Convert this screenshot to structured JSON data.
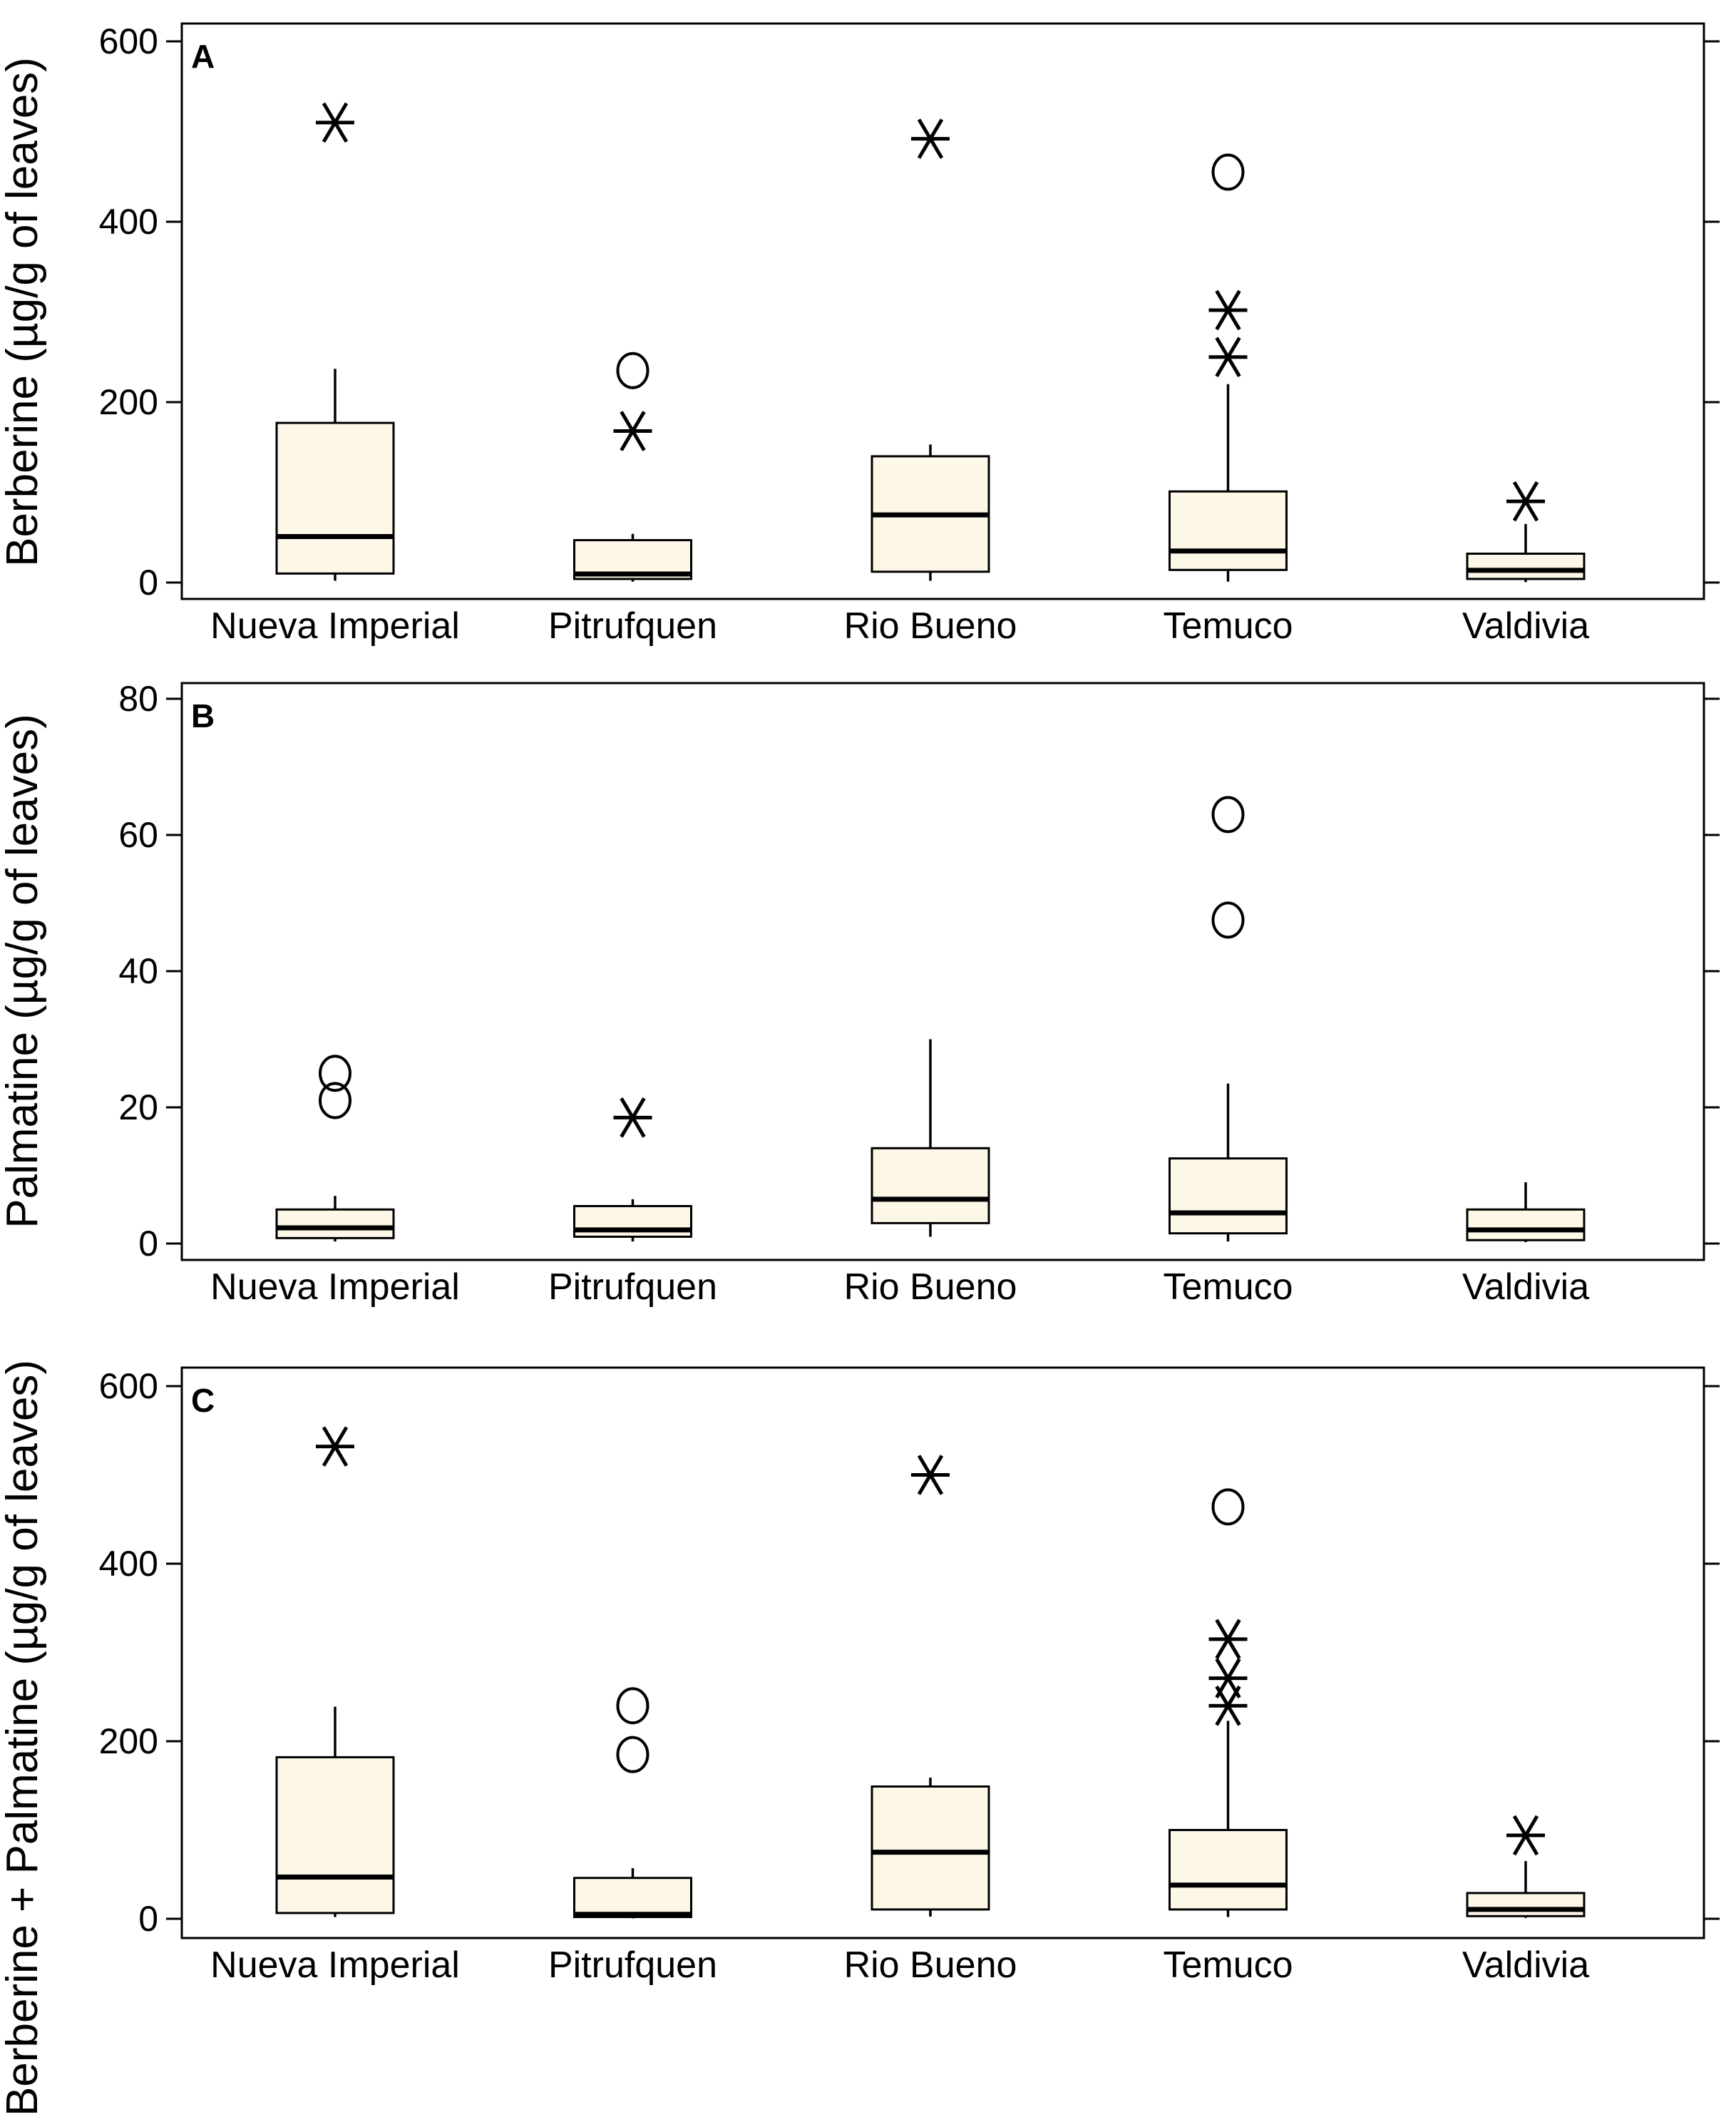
{
  "figure_title": "",
  "chart_data": {
    "type": "box",
    "categories": [
      "Nueva Imperial",
      "Pitrufquen",
      "Rio Bueno",
      "Temuco",
      "Valdivia"
    ],
    "legend": "none",
    "grid": false,
    "style": {
      "background": "#ffffff",
      "box_fill": "#fdf7e7",
      "line_color": "#000000",
      "tick_label_color": "#000000"
    },
    "outlier_symbols": {
      "star": "extreme outlier (asterisk)",
      "circle": "mild outlier (circle)"
    },
    "panels": [
      {
        "label": "A",
        "ylabel": "Berberine (µg/g of leaves)",
        "xlabel": "",
        "ylim": [
          0,
          620
        ],
        "yticks": [
          0,
          200,
          400,
          600
        ],
        "boxes": [
          {
            "category": "Nueva Imperial",
            "whisker_low": 2,
            "q1": 10,
            "median": 51,
            "q3": 177,
            "whisker_high": 237,
            "outliers": [
              {
                "type": "star",
                "value": 510
              }
            ]
          },
          {
            "category": "Pitrufquen",
            "whisker_low": 1,
            "q1": 4,
            "median": 9.5,
            "q3": 47,
            "whisker_high": 54,
            "outliers": [
              {
                "type": "circle",
                "value": 235
              },
              {
                "type": "star",
                "value": 168
              }
            ]
          },
          {
            "category": "Rio Bueno",
            "whisker_low": 2,
            "q1": 12,
            "median": 75,
            "q3": 140,
            "whisker_high": 153,
            "outliers": [
              {
                "type": "star",
                "value": 492
              }
            ]
          },
          {
            "category": "Temuco",
            "whisker_low": 1,
            "q1": 14,
            "median": 35,
            "q3": 101,
            "whisker_high": 220,
            "outliers": [
              {
                "type": "circle",
                "value": 455
              },
              {
                "type": "star",
                "value": 302
              },
              {
                "type": "star",
                "value": 250
              }
            ]
          },
          {
            "category": "Valdivia",
            "whisker_low": 0.5,
            "q1": 4,
            "median": 13.5,
            "q3": 32,
            "whisker_high": 65,
            "outliers": [
              {
                "type": "star",
                "value": 90
              }
            ]
          }
        ]
      },
      {
        "label": "B",
        "ylabel": "Palmatine (µg/g of leaves)",
        "xlabel": "",
        "ylim": [
          0,
          82
        ],
        "yticks": [
          0,
          20,
          40,
          60,
          80
        ],
        "boxes": [
          {
            "category": "Nueva Imperial",
            "whisker_low": 0.3,
            "q1": 0.8,
            "median": 2.3,
            "q3": 5,
            "whisker_high": 7,
            "outliers": [
              {
                "type": "circle",
                "value": 25
              },
              {
                "type": "circle",
                "value": 21
              }
            ]
          },
          {
            "category": "Pitrufquen",
            "whisker_low": 0.3,
            "q1": 1,
            "median": 2,
            "q3": 5.5,
            "whisker_high": 6.5,
            "outliers": [
              {
                "type": "star",
                "value": 18.5
              }
            ]
          },
          {
            "category": "Rio Bueno",
            "whisker_low": 1,
            "q1": 3,
            "median": 6.5,
            "q3": 14,
            "whisker_high": 30,
            "outliers": []
          },
          {
            "category": "Temuco",
            "whisker_low": 0.3,
            "q1": 1.5,
            "median": 4.5,
            "q3": 12.5,
            "whisker_high": 23.5,
            "outliers": [
              {
                "type": "circle",
                "value": 63
              },
              {
                "type": "circle",
                "value": 47.5
              }
            ]
          },
          {
            "category": "Valdivia",
            "whisker_low": 0.2,
            "q1": 0.5,
            "median": 2,
            "q3": 5,
            "whisker_high": 9,
            "outliers": []
          }
        ]
      },
      {
        "label": "C",
        "ylabel": "Berberine + Palmatine (µg/g of leaves)",
        "xlabel": "",
        "ylim": [
          0,
          620
        ],
        "yticks": [
          0,
          200,
          400,
          600
        ],
        "boxes": [
          {
            "category": "Nueva Imperial",
            "whisker_low": 2,
            "q1": 6.5,
            "median": 47,
            "q3": 182,
            "whisker_high": 239,
            "outliers": [
              {
                "type": "star",
                "value": 532
              }
            ]
          },
          {
            "category": "Pitrufquen",
            "whisker_low": 0.5,
            "q1": 2,
            "median": 5,
            "q3": 46,
            "whisker_high": 57,
            "outliers": [
              {
                "type": "circle",
                "value": 240
              },
              {
                "type": "circle",
                "value": 185
              }
            ]
          },
          {
            "category": "Rio Bueno",
            "whisker_low": 2.5,
            "q1": 10.5,
            "median": 75,
            "q3": 149,
            "whisker_high": 159,
            "outliers": [
              {
                "type": "star",
                "value": 500
              }
            ]
          },
          {
            "category": "Temuco",
            "whisker_low": 2,
            "q1": 10.5,
            "median": 38,
            "q3": 100,
            "whisker_high": 223,
            "outliers": [
              {
                "type": "circle",
                "value": 464
              },
              {
                "type": "star",
                "value": 315
              },
              {
                "type": "star",
                "value": 271
              },
              {
                "type": "star",
                "value": 240
              }
            ]
          },
          {
            "category": "Valdivia",
            "whisker_low": 1,
            "q1": 3,
            "median": 10.5,
            "q3": 29,
            "whisker_high": 65,
            "outliers": [
              {
                "type": "star",
                "value": 94
              }
            ]
          }
        ]
      }
    ]
  }
}
